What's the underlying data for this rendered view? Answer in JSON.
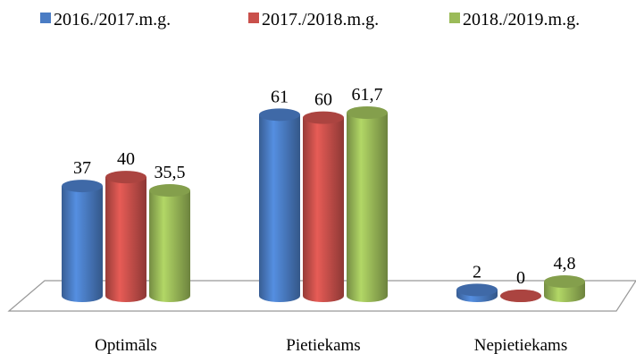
{
  "chart_data": {
    "type": "bar3d",
    "categories": [
      "Optimāls",
      "Pietiekams",
      "Nepietiekams"
    ],
    "series": [
      {
        "name": "2016./2017.m.g.",
        "color": "#4a7cc4",
        "values": [
          37,
          61,
          2
        ]
      },
      {
        "name": "2017./2018.m.g.",
        "color": "#c9504b",
        "values": [
          40,
          60,
          0
        ]
      },
      {
        "name": "2018./2019.m.g.",
        "color": "#9bbb59",
        "values": [
          35.5,
          61.7,
          4.8
        ],
        "value_labels": [
          "35,5",
          "61,7",
          "4,8"
        ]
      }
    ],
    "legend": "top"
  }
}
